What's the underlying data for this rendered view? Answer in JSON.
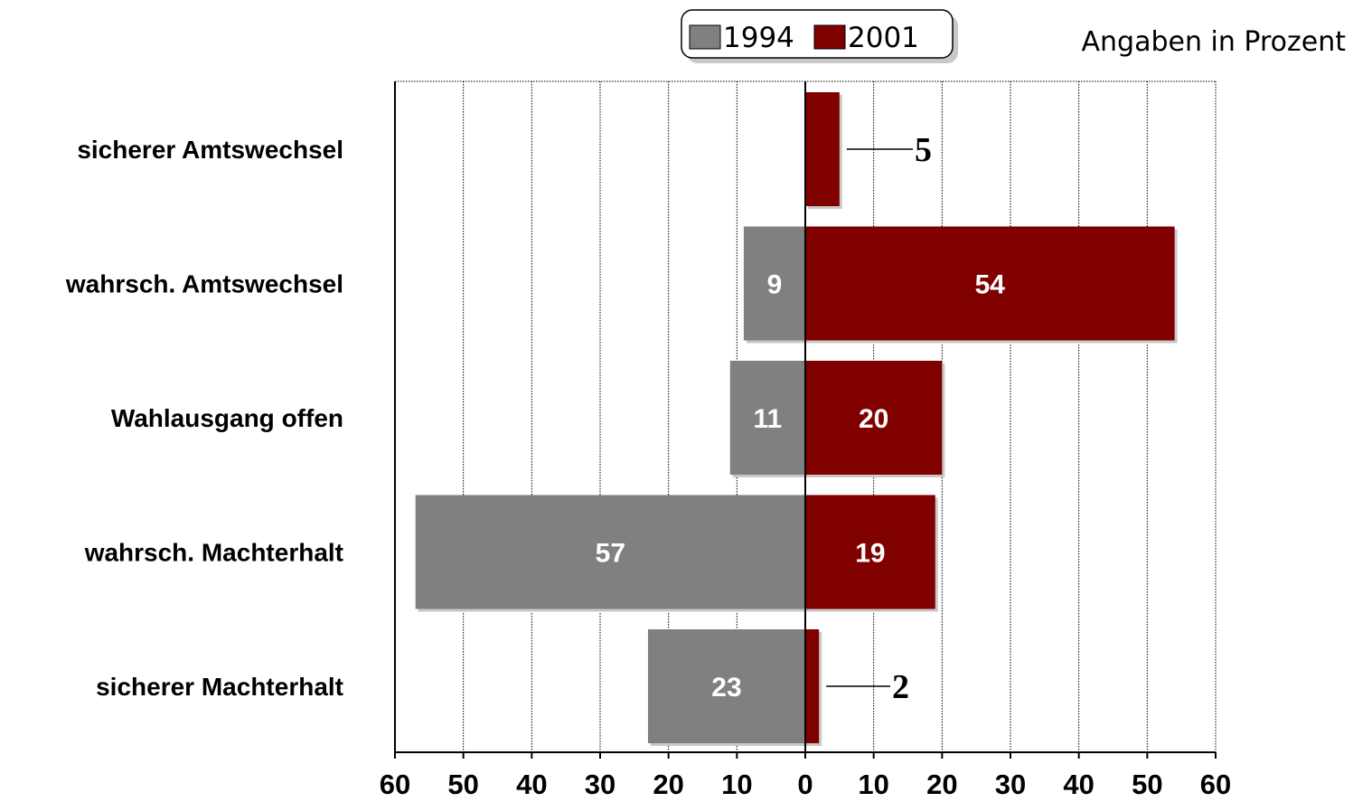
{
  "chart_data": {
    "type": "bar",
    "orientation": "horizontal-diverging",
    "units_note": "Angaben in Prozent",
    "categories": [
      "sicherer Amtswechsel",
      "wahrsch. Amtswechsel",
      "Wahlausgang offen",
      "wahrsch. Machterhalt",
      "sicherer Machterhalt"
    ],
    "series": [
      {
        "name": "1994",
        "color": "#808080",
        "direction": "left",
        "values": [
          0,
          9,
          11,
          57,
          23
        ],
        "labels": [
          "",
          "9",
          "11",
          "57",
          "23"
        ]
      },
      {
        "name": "2001",
        "color": "#800000",
        "direction": "right",
        "values": [
          5,
          54,
          20,
          19,
          2
        ],
        "labels": [
          "5",
          "54",
          "20",
          "19",
          "2"
        ],
        "callout_labels": [
          "5",
          "",
          "",
          "",
          "2"
        ]
      }
    ],
    "xlim": [
      -60,
      60
    ],
    "x_ticks": [
      -60,
      -50,
      -40,
      -30,
      -20,
      -10,
      0,
      10,
      20,
      30,
      40,
      50,
      60
    ],
    "x_tick_labels": [
      "60",
      "50",
      "40",
      "30",
      "20",
      "10",
      "0",
      "10",
      "20",
      "30",
      "40",
      "50",
      "60"
    ],
    "grid": true,
    "legend": {
      "position": "top-center",
      "entries": [
        {
          "label": "1994",
          "color": "#808080"
        },
        {
          "label": "2001",
          "color": "#800000"
        }
      ]
    }
  }
}
